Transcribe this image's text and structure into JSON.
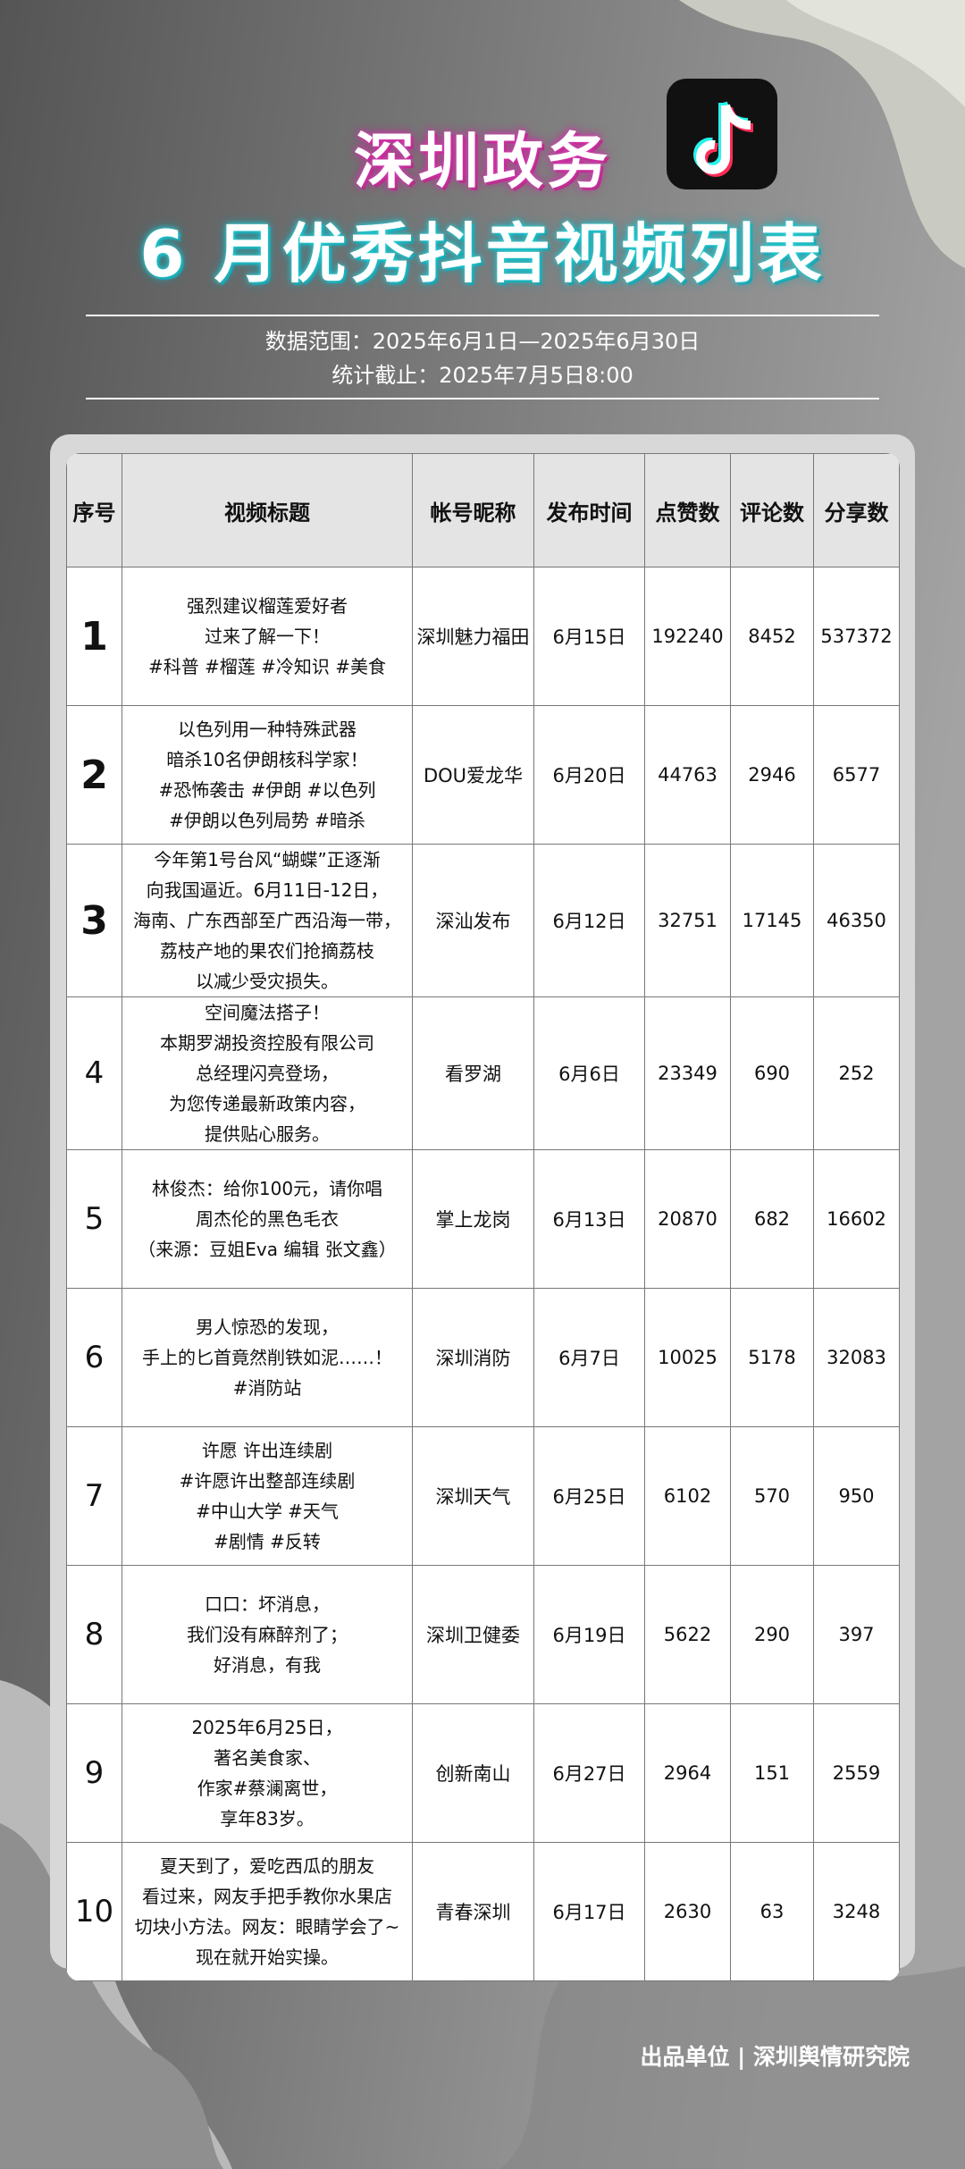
{
  "header": {
    "title": "深圳政务",
    "subtitle": "6 月优秀抖音视频列表",
    "data_range": "数据范围：2025年6月1日—2025年6月30日",
    "cutoff": "统计截止：2025年7月5日8:00"
  },
  "table": {
    "columns": [
      "序号",
      "视频标题",
      "帐号昵称",
      "发布时间",
      "点赞数",
      "评论数",
      "分享数"
    ],
    "rows": [
      {
        "rank": 1,
        "title": [
          "强烈建议榴莲爱好者",
          "过来了解一下！",
          "#科普 #榴莲 #冷知识 #美食"
        ],
        "account": "深圳魅力福田",
        "date": "6月15日",
        "likes": 192240,
        "comments": 8452,
        "shares": 537372
      },
      {
        "rank": 2,
        "title": [
          "以色列用一种特殊武器",
          "暗杀10名伊朗核科学家！",
          "#恐怖袭击 #伊朗 #以色列",
          "#伊朗以色列局势 #暗杀"
        ],
        "account": "DOU爱龙华",
        "date": "6月20日",
        "likes": 44763,
        "comments": 2946,
        "shares": 6577
      },
      {
        "rank": 3,
        "title": [
          "今年第1号台风“蝴蝶”正逐渐",
          "向我国逼近。6月11日-12日，",
          "海南、广东西部至广西沿海一带，",
          "荔枝产地的果农们抢摘荔枝",
          "以减少受灾损失。"
        ],
        "account": "深汕发布",
        "date": "6月12日",
        "likes": 32751,
        "comments": 17145,
        "shares": 46350
      },
      {
        "rank": 4,
        "title": [
          "空间魔法搭子！",
          "本期罗湖投资控股有限公司",
          "总经理闪亮登场，",
          "为您传递最新政策内容，",
          "提供贴心服务。"
        ],
        "account": "看罗湖",
        "date": "6月6日",
        "likes": 23349,
        "comments": 690,
        "shares": 252
      },
      {
        "rank": 5,
        "title": [
          "林俊杰：给你100元，请你唱",
          "周杰伦的黑色毛衣",
          "（来源：豆姐Eva 编辑 张文鑫）"
        ],
        "account": "掌上龙岗",
        "date": "6月13日",
        "likes": 20870,
        "comments": 682,
        "shares": 16602
      },
      {
        "rank": 6,
        "title": [
          "男人惊恐的发现，",
          "手上的匕首竟然削铁如泥……！",
          "#消防站"
        ],
        "account": "深圳消防",
        "date": "6月7日",
        "likes": 10025,
        "comments": 5178,
        "shares": 32083
      },
      {
        "rank": 7,
        "title": [
          "许愿 许出连续剧",
          "#许愿许出整部连续剧",
          "#中山大学 #天气",
          "#剧情 #反转"
        ],
        "account": "深圳天气",
        "date": "6月25日",
        "likes": 6102,
        "comments": 570,
        "shares": 950
      },
      {
        "rank": 8,
        "title": [
          "口口：坏消息，",
          "我们没有麻醉剂了；",
          "好消息，有我"
        ],
        "account": "深圳卫健委",
        "date": "6月19日",
        "likes": 5622,
        "comments": 290,
        "shares": 397
      },
      {
        "rank": 9,
        "title": [
          "2025年6月25日，",
          "著名美食家、",
          "作家#蔡澜离世，",
          "享年83岁。"
        ],
        "account": "创新南山",
        "date": "6月27日",
        "likes": 2964,
        "comments": 151,
        "shares": 2559
      },
      {
        "rank": 10,
        "title": [
          "夏天到了，爱吃西瓜的朋友",
          "看过来，网友手把手教你水果店",
          "切块小方法。网友：眼睛学会了~",
          "现在就开始实操。"
        ],
        "account": "青春深圳",
        "date": "6月17日",
        "likes": 2630,
        "comments": 63,
        "shares": 3248
      }
    ]
  },
  "footer": "出品单位 | 深圳舆情研究院"
}
